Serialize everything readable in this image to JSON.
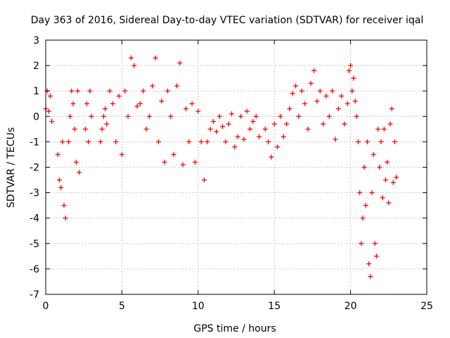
{
  "chart_data": {
    "type": "scatter",
    "title": "Day 363 of 2016, Sidereal Day-to-day VTEC variation (SDTVAR) for receiver iqal",
    "xlabel": "GPS time / hours",
    "ylabel": "SDTVAR / TECUs",
    "xlim": [
      0,
      25
    ],
    "ylim": [
      -7,
      3
    ],
    "xticks": [
      0,
      5,
      10,
      15,
      20,
      25
    ],
    "yticks": [
      -7,
      -6,
      -5,
      -4,
      -3,
      -2,
      -1,
      0,
      1,
      2,
      3
    ],
    "grid": true,
    "marker": "+",
    "color": "#ff0000",
    "series": [
      {
        "name": "SDTVAR",
        "segments": [
          {
            "x": [
              0.0,
              0.1,
              0.2,
              0.3,
              0.4
            ],
            "y": [
              0.3,
              1.0,
              0.2,
              0.8,
              -0.2
            ]
          },
          {
            "x": [
              0.8,
              0.9,
              1.0,
              1.1,
              1.2,
              1.3
            ],
            "y": [
              -1.5,
              -2.5,
              -2.8,
              -1.0,
              -3.5,
              -4.0
            ]
          },
          {
            "x": [
              1.5,
              1.6,
              1.7,
              1.8,
              1.9,
              2.0,
              2.1,
              2.2
            ],
            "y": [
              -1.0,
              0.0,
              1.0,
              0.5,
              -0.5,
              -1.8,
              1.0,
              -2.2
            ]
          },
          {
            "x": [
              2.6,
              2.7,
              2.8,
              2.9,
              3.0
            ],
            "y": [
              -0.5,
              0.5,
              -1.0,
              1.0,
              0.0
            ]
          },
          {
            "x": [
              3.6,
              3.7,
              3.8,
              3.9,
              4.0,
              4.2,
              4.4,
              4.6,
              4.8,
              5.0,
              5.2,
              5.4,
              5.6,
              5.8,
              6.0
            ],
            "y": [
              -1.0,
              -0.5,
              0.0,
              0.3,
              -0.3,
              1.0,
              0.5,
              -1.0,
              0.8,
              -1.5,
              1.0,
              0.0,
              2.3,
              2.0,
              0.4
            ]
          },
          {
            "x": [
              6.2,
              6.4,
              6.6,
              6.8,
              7.0,
              7.2,
              7.4,
              7.6,
              7.8,
              8.0,
              8.2,
              8.4,
              8.6,
              8.8,
              9.0,
              9.2,
              9.4,
              9.6,
              9.8,
              10.0
            ],
            "y": [
              0.5,
              1.0,
              -0.5,
              0.0,
              1.2,
              2.3,
              -1.0,
              0.6,
              -1.8,
              1.0,
              0.0,
              -1.5,
              1.2,
              2.1,
              -1.9,
              0.3,
              -1.0,
              0.5,
              -1.8,
              0.2
            ]
          },
          {
            "x": [
              10.2,
              10.4,
              10.6,
              10.8,
              11.0,
              11.2,
              11.4,
              11.6,
              11.8,
              12.0,
              12.2,
              12.4,
              12.6,
              12.8,
              13.0,
              13.2,
              13.4,
              13.6,
              13.8,
              14.0
            ],
            "y": [
              -1.0,
              -2.5,
              -1.0,
              -0.5,
              -0.2,
              -0.6,
              0.0,
              -0.4,
              -1.0,
              -0.3,
              0.1,
              -1.2,
              -0.8,
              0.0,
              -0.9,
              0.2,
              -0.5,
              -0.2,
              0.0,
              -0.8
            ]
          },
          {
            "x": [
              14.4,
              14.6,
              14.8,
              15.0,
              15.2,
              15.4,
              15.6,
              15.8,
              16.0,
              16.2,
              16.4,
              16.6,
              16.8,
              17.0,
              17.2,
              17.4,
              17.6,
              17.8,
              18.0,
              18.2,
              18.4,
              18.6,
              18.8,
              19.0,
              19.2,
              19.4,
              19.6,
              19.8
            ],
            "y": [
              -0.5,
              -1.0,
              -1.6,
              -0.3,
              -1.2,
              0.0,
              -0.8,
              -0.3,
              0.3,
              0.9,
              1.2,
              0.0,
              1.0,
              0.5,
              -0.5,
              1.3,
              1.8,
              0.6,
              1.0,
              -0.3,
              0.8,
              0.0,
              1.0,
              -0.9,
              0.3,
              0.8,
              -0.3,
              0.5
            ]
          },
          {
            "x": [
              19.9,
              20.0,
              20.1,
              20.2,
              20.3,
              20.4,
              20.5,
              20.6,
              20.7,
              20.8,
              20.9,
              21.0,
              21.1,
              21.2,
              21.3,
              21.4,
              21.5,
              21.6,
              21.7,
              21.8,
              21.9,
              22.0,
              22.1,
              22.2,
              22.3,
              22.4,
              22.5,
              22.6,
              22.7,
              22.8,
              22.9,
              23.0
            ],
            "y": [
              1.8,
              2.0,
              1.0,
              1.5,
              0.6,
              0.0,
              -1.0,
              -3.0,
              -5.0,
              -4.0,
              -2.0,
              -3.5,
              -1.0,
              -5.8,
              -6.3,
              -3.0,
              -1.5,
              -5.0,
              -5.5,
              -0.5,
              -2.0,
              -1.0,
              -3.2,
              -0.5,
              -2.5,
              -1.8,
              -3.4,
              -0.3,
              0.3,
              -2.6,
              -1.0,
              -2.4
            ]
          }
        ]
      }
    ]
  }
}
